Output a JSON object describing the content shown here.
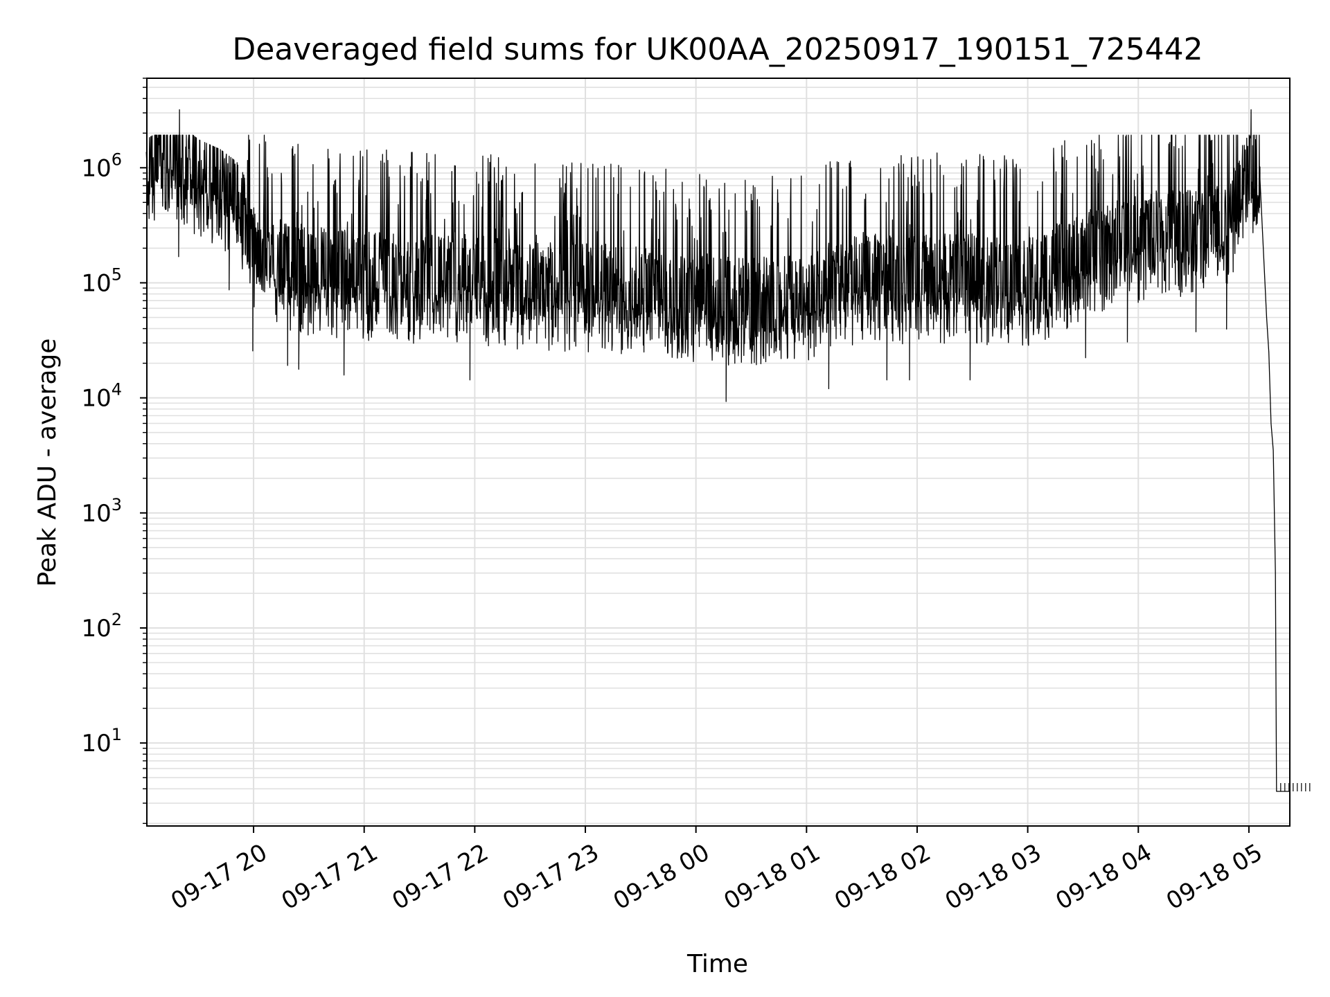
{
  "chart_data": {
    "type": "line",
    "title": "Deaveraged field sums for UK00AA_20250917_190151_725442",
    "xlabel": "Time",
    "ylabel": "Peak ADU - average",
    "yscale": "log",
    "ylim": [
      1.9,
      6000000
    ],
    "xlim_hours": [
      19.035,
      29.37
    ],
    "grid": true,
    "line_color": "#000000",
    "grid_color": "#e0e0e0",
    "x_ticks": [
      {
        "hour": 20,
        "label": "09-17 20"
      },
      {
        "hour": 21,
        "label": "09-17 21"
      },
      {
        "hour": 22,
        "label": "09-17 22"
      },
      {
        "hour": 23,
        "label": "09-17 23"
      },
      {
        "hour": 24,
        "label": "09-18 00"
      },
      {
        "hour": 25,
        "label": "09-18 01"
      },
      {
        "hour": 26,
        "label": "09-18 02"
      },
      {
        "hour": 27,
        "label": "09-18 03"
      },
      {
        "hour": 28,
        "label": "09-18 04"
      },
      {
        "hour": 29,
        "label": "09-18 05"
      }
    ],
    "y_ticks": [
      {
        "exp": 1,
        "base": "10",
        "sup": "1"
      },
      {
        "exp": 2,
        "base": "10",
        "sup": "2"
      },
      {
        "exp": 3,
        "base": "10",
        "sup": "3"
      },
      {
        "exp": 4,
        "base": "10",
        "sup": "4"
      },
      {
        "exp": 5,
        "base": "10",
        "sup": "5"
      },
      {
        "exp": 6,
        "base": "10",
        "sup": "6"
      }
    ],
    "series": [
      {
        "name": "Peak ADU - average",
        "baseline_hours": [
          19.03,
          19.3,
          19.5,
          19.7,
          19.85,
          20.0,
          20.5,
          21.0,
          21.5,
          22.0,
          22.5,
          23.0,
          23.5,
          24.0,
          24.5,
          25.0,
          25.3,
          25.6,
          26.0,
          26.5,
          27.0,
          27.3,
          27.6,
          28.0,
          28.5,
          28.8,
          29.0,
          29.1
        ],
        "baseline_values": [
          550000,
          800000,
          550000,
          450000,
          350000,
          110000,
          75000,
          70000,
          65000,
          65000,
          55000,
          55000,
          50000,
          45000,
          40000,
          45000,
          60000,
          65000,
          65000,
          65000,
          60000,
          80000,
          110000,
          150000,
          170000,
          180000,
          600000,
          500000
        ],
        "spike_max": 3200000,
        "spike_hours": [
          19.33,
          29.02
        ],
        "tail": {
          "hours": [
            29.1,
            29.13,
            29.16,
            29.18,
            29.2,
            29.22,
            29.24,
            29.25,
            29.26,
            29.37
          ],
          "values": [
            800000,
            200000,
            50000,
            25000,
            6000,
            3500,
            300,
            3.8,
            3.8,
            3.8
          ]
        }
      }
    ]
  }
}
